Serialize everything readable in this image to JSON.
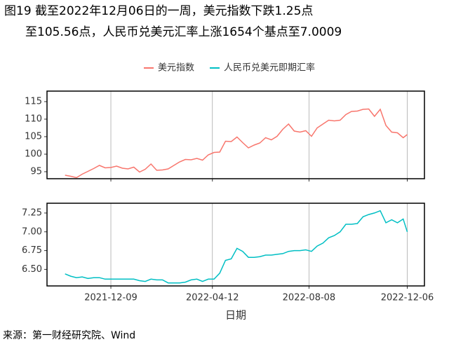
{
  "title": [
    "图19  截至2022年12月06日的一周，美元指数下跌1.25点",
    "至105.56点，人民币兑美元汇率上涨1654个基点至7.0009"
  ],
  "legend": "top",
  "source": "来源：第一财经研究院、Wind",
  "chart_data": [
    {
      "type": "line",
      "grid": true,
      "x": [
        "2021-10-14",
        "2021-10-21",
        "2021-10-28",
        "2021-11-04",
        "2021-11-11",
        "2021-11-18",
        "2021-11-25",
        "2021-12-02",
        "2021-12-09",
        "2021-12-16",
        "2021-12-23",
        "2021-12-30",
        "2022-01-06",
        "2022-01-13",
        "2022-01-20",
        "2022-01-27",
        "2022-02-03",
        "2022-02-10",
        "2022-02-17",
        "2022-02-24",
        "2022-03-03",
        "2022-03-10",
        "2022-03-17",
        "2022-03-24",
        "2022-03-31",
        "2022-04-07",
        "2022-04-14",
        "2022-04-21",
        "2022-04-28",
        "2022-05-05",
        "2022-05-12",
        "2022-05-19",
        "2022-05-26",
        "2022-06-02",
        "2022-06-09",
        "2022-06-16",
        "2022-06-23",
        "2022-06-30",
        "2022-07-07",
        "2022-07-14",
        "2022-07-21",
        "2022-07-28",
        "2022-08-04",
        "2022-08-11",
        "2022-08-18",
        "2022-08-25",
        "2022-09-01",
        "2022-09-08",
        "2022-09-15",
        "2022-09-22",
        "2022-09-29",
        "2022-10-06",
        "2022-10-13",
        "2022-10-20",
        "2022-10-27",
        "2022-11-03",
        "2022-11-10",
        "2022-11-17",
        "2022-11-24",
        "2022-12-01",
        "2022-12-06"
      ],
      "series": [
        {
          "name": "美元指数",
          "color": "#f8766d",
          "values": [
            94.0,
            93.7,
            93.3,
            94.3,
            95.1,
            95.9,
            96.8,
            96.1,
            96.2,
            96.6,
            96.0,
            95.8,
            96.3,
            94.9,
            95.7,
            97.2,
            95.4,
            95.5,
            95.8,
            96.8,
            97.8,
            98.5,
            98.4,
            98.8,
            98.3,
            99.8,
            100.5,
            100.6,
            103.7,
            103.6,
            104.9,
            103.3,
            101.8,
            102.6,
            103.2,
            104.7,
            104.1,
            105.1,
            107.1,
            108.6,
            106.6,
            106.3,
            106.7,
            105.1,
            107.5,
            108.6,
            109.7,
            109.5,
            109.7,
            111.3,
            112.2,
            112.3,
            112.8,
            112.9,
            110.8,
            112.8,
            108.2,
            106.3,
            106.1,
            104.7,
            105.6
          ]
        }
      ],
      "xlim": [
        "2021-09-22",
        "2022-12-27"
      ],
      "xticks": [
        "2021-12-09",
        "2022-04-12",
        "2022-08-08",
        "2022-12-06"
      ],
      "ylim": [
        93,
        118
      ],
      "yticks": [
        95,
        100,
        105,
        110,
        115
      ]
    },
    {
      "type": "line",
      "grid": true,
      "xlabel": "日期",
      "x": [
        "2021-10-14",
        "2021-10-21",
        "2021-10-28",
        "2021-11-04",
        "2021-11-11",
        "2021-11-18",
        "2021-11-25",
        "2021-12-02",
        "2021-12-09",
        "2021-12-16",
        "2021-12-23",
        "2021-12-30",
        "2022-01-06",
        "2022-01-13",
        "2022-01-20",
        "2022-01-27",
        "2022-02-03",
        "2022-02-10",
        "2022-02-17",
        "2022-02-24",
        "2022-03-03",
        "2022-03-10",
        "2022-03-17",
        "2022-03-24",
        "2022-03-31",
        "2022-04-07",
        "2022-04-14",
        "2022-04-21",
        "2022-04-28",
        "2022-05-05",
        "2022-05-12",
        "2022-05-19",
        "2022-05-26",
        "2022-06-02",
        "2022-06-09",
        "2022-06-16",
        "2022-06-23",
        "2022-06-30",
        "2022-07-07",
        "2022-07-14",
        "2022-07-21",
        "2022-07-28",
        "2022-08-04",
        "2022-08-11",
        "2022-08-18",
        "2022-08-25",
        "2022-09-01",
        "2022-09-08",
        "2022-09-15",
        "2022-09-22",
        "2022-09-29",
        "2022-10-06",
        "2022-10-13",
        "2022-10-20",
        "2022-10-27",
        "2022-11-03",
        "2022-11-10",
        "2022-11-17",
        "2022-11-24",
        "2022-12-01",
        "2022-12-06"
      ],
      "series": [
        {
          "name": "人民币兑美元即期汇率",
          "color": "#00bfc4",
          "values": [
            6.44,
            6.41,
            6.39,
            6.4,
            6.38,
            6.39,
            6.39,
            6.37,
            6.37,
            6.37,
            6.37,
            6.37,
            6.37,
            6.35,
            6.34,
            6.37,
            6.36,
            6.36,
            6.32,
            6.32,
            6.32,
            6.33,
            6.36,
            6.37,
            6.34,
            6.37,
            6.37,
            6.45,
            6.62,
            6.64,
            6.78,
            6.74,
            6.66,
            6.66,
            6.67,
            6.69,
            6.69,
            6.7,
            6.71,
            6.74,
            6.75,
            6.75,
            6.76,
            6.74,
            6.81,
            6.85,
            6.92,
            6.95,
            7.0,
            7.1,
            7.1,
            7.11,
            7.2,
            7.23,
            7.25,
            7.28,
            7.12,
            7.16,
            7.12,
            7.17,
            7.0
          ]
        }
      ],
      "xlim": [
        "2021-09-22",
        "2022-12-27"
      ],
      "xticks": [
        "2021-12-09",
        "2022-04-12",
        "2022-08-08",
        "2022-12-06"
      ],
      "ylim": [
        6.28,
        7.38
      ],
      "yticks": [
        {
          "value": 6.5,
          "label": "6.50"
        },
        6.75,
        {
          "value": 7,
          "label": "7.00"
        },
        7.25
      ]
    }
  ]
}
